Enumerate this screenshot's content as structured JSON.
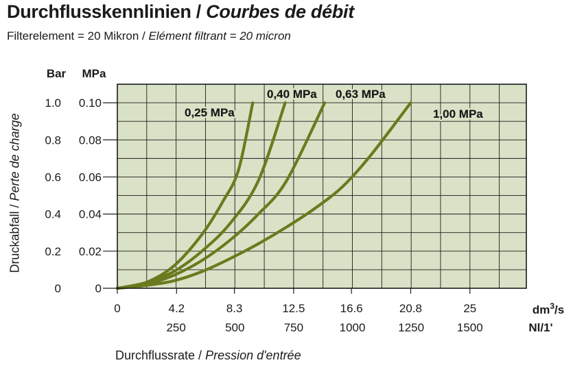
{
  "title": {
    "main": "Durchflusskennlinien",
    "separator": " / ",
    "italic": "Courbes de débit"
  },
  "subtitle": {
    "main": "Filterelement = 20 Mikron",
    "separator": " / ",
    "italic": "Elément filtrant = 20 micron"
  },
  "chart_data": {
    "type": "line",
    "title": "Durchflusskennlinien / Courbes de débit",
    "xlabel": "Durchflussrate / Pression d'entrée",
    "ylabel": "Druckabfall / Perte de charge",
    "x_unit_primary": "dm³/s",
    "x_unit_secondary": "Nl/1'",
    "y_unit_primary": "Bar",
    "y_unit_secondary": "MPa",
    "xlim": [
      0,
      29
    ],
    "ylim": [
      0,
      0.11
    ],
    "x_ticks_primary": [
      "0",
      "4.2",
      "8.3",
      "12.5",
      "16.6",
      "20.8",
      "25"
    ],
    "x_ticks_secondary": [
      "250",
      "500",
      "750",
      "1000",
      "1250",
      "1500"
    ],
    "y_ticks_bar": [
      "0",
      "0.2",
      "0.4",
      "0.6",
      "0.8",
      "1.0"
    ],
    "y_ticks_mpa": [
      "0",
      "0.02",
      "0.04",
      "0.06",
      "0.08",
      "0.10"
    ],
    "grid": true,
    "background_color": "#d9e2c6",
    "line_color": "#6b7a1e",
    "series": [
      {
        "name": "0,25 MPa",
        "x": [
          0,
          2,
          4,
          6,
          7.5,
          8.6,
          9.6
        ],
        "y": [
          0,
          0.003,
          0.012,
          0.029,
          0.047,
          0.064,
          0.1
        ]
      },
      {
        "name": "0,40 MPa",
        "x": [
          0,
          2,
          4,
          6,
          8,
          10,
          11.9
        ],
        "y": [
          0,
          0.003,
          0.009,
          0.02,
          0.035,
          0.058,
          0.1
        ]
      },
      {
        "name": "0,63 MPa",
        "x": [
          0,
          2,
          4,
          6,
          8,
          10,
          12,
          14.7
        ],
        "y": [
          0,
          0.002,
          0.007,
          0.015,
          0.026,
          0.04,
          0.058,
          0.1
        ]
      },
      {
        "name": "1,00 MPa",
        "x": [
          0,
          2,
          4,
          6,
          8,
          10,
          12,
          14,
          16,
          18,
          20.8
        ],
        "y": [
          0,
          0.0015,
          0.004,
          0.009,
          0.016,
          0.024,
          0.033,
          0.043,
          0.055,
          0.072,
          0.1
        ]
      }
    ]
  }
}
